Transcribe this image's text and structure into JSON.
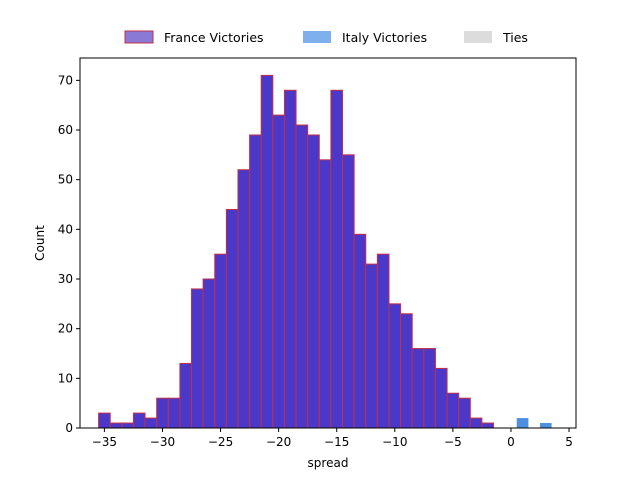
{
  "chart_data": {
    "type": "bar",
    "title": "",
    "xlabel": "spread",
    "ylabel": "Count",
    "xlim": [
      -37.1,
      5.6
    ],
    "ylim": [
      0,
      74.5
    ],
    "xticks": [
      -35,
      -30,
      -25,
      -20,
      -15,
      -10,
      -5,
      0,
      5
    ],
    "yticks": [
      0,
      10,
      20,
      30,
      40,
      50,
      60,
      70
    ],
    "grid": false,
    "legend_placement": "top-center",
    "bin_width": 1,
    "series": [
      {
        "name": "France Victories",
        "fill": "#4b38c9",
        "edge": "#c0304a",
        "bins": [
          {
            "x": -35,
            "count": 3
          },
          {
            "x": -34,
            "count": 1
          },
          {
            "x": -33,
            "count": 1
          },
          {
            "x": -32,
            "count": 3
          },
          {
            "x": -31,
            "count": 2
          },
          {
            "x": -30,
            "count": 6
          },
          {
            "x": -29,
            "count": 6
          },
          {
            "x": -28,
            "count": 13
          },
          {
            "x": -27,
            "count": 28
          },
          {
            "x": -26,
            "count": 30
          },
          {
            "x": -25,
            "count": 35
          },
          {
            "x": -24,
            "count": 44
          },
          {
            "x": -23,
            "count": 52
          },
          {
            "x": -22,
            "count": 59
          },
          {
            "x": -21,
            "count": 71
          },
          {
            "x": -20,
            "count": 63
          },
          {
            "x": -19,
            "count": 68
          },
          {
            "x": -18,
            "count": 61
          },
          {
            "x": -17,
            "count": 59
          },
          {
            "x": -16,
            "count": 54
          },
          {
            "x": -15,
            "count": 68
          },
          {
            "x": -14,
            "count": 55
          },
          {
            "x": -13,
            "count": 39
          },
          {
            "x": -12,
            "count": 33
          },
          {
            "x": -11,
            "count": 35
          },
          {
            "x": -10,
            "count": 25
          },
          {
            "x": -9,
            "count": 23
          },
          {
            "x": -8,
            "count": 16
          },
          {
            "x": -7,
            "count": 16
          },
          {
            "x": -6,
            "count": 12
          },
          {
            "x": -5,
            "count": 7
          },
          {
            "x": -4,
            "count": 6
          },
          {
            "x": -3,
            "count": 2
          },
          {
            "x": -2,
            "count": 1
          }
        ]
      },
      {
        "name": "Italy Victories",
        "fill": "#4f8fe0",
        "edge": "none",
        "bins": [
          {
            "x": 1,
            "count": 2
          },
          {
            "x": 3,
            "count": 1
          }
        ]
      },
      {
        "name": "Ties",
        "fill": "#dcdcdc",
        "edge": "none",
        "bins": []
      }
    ]
  }
}
